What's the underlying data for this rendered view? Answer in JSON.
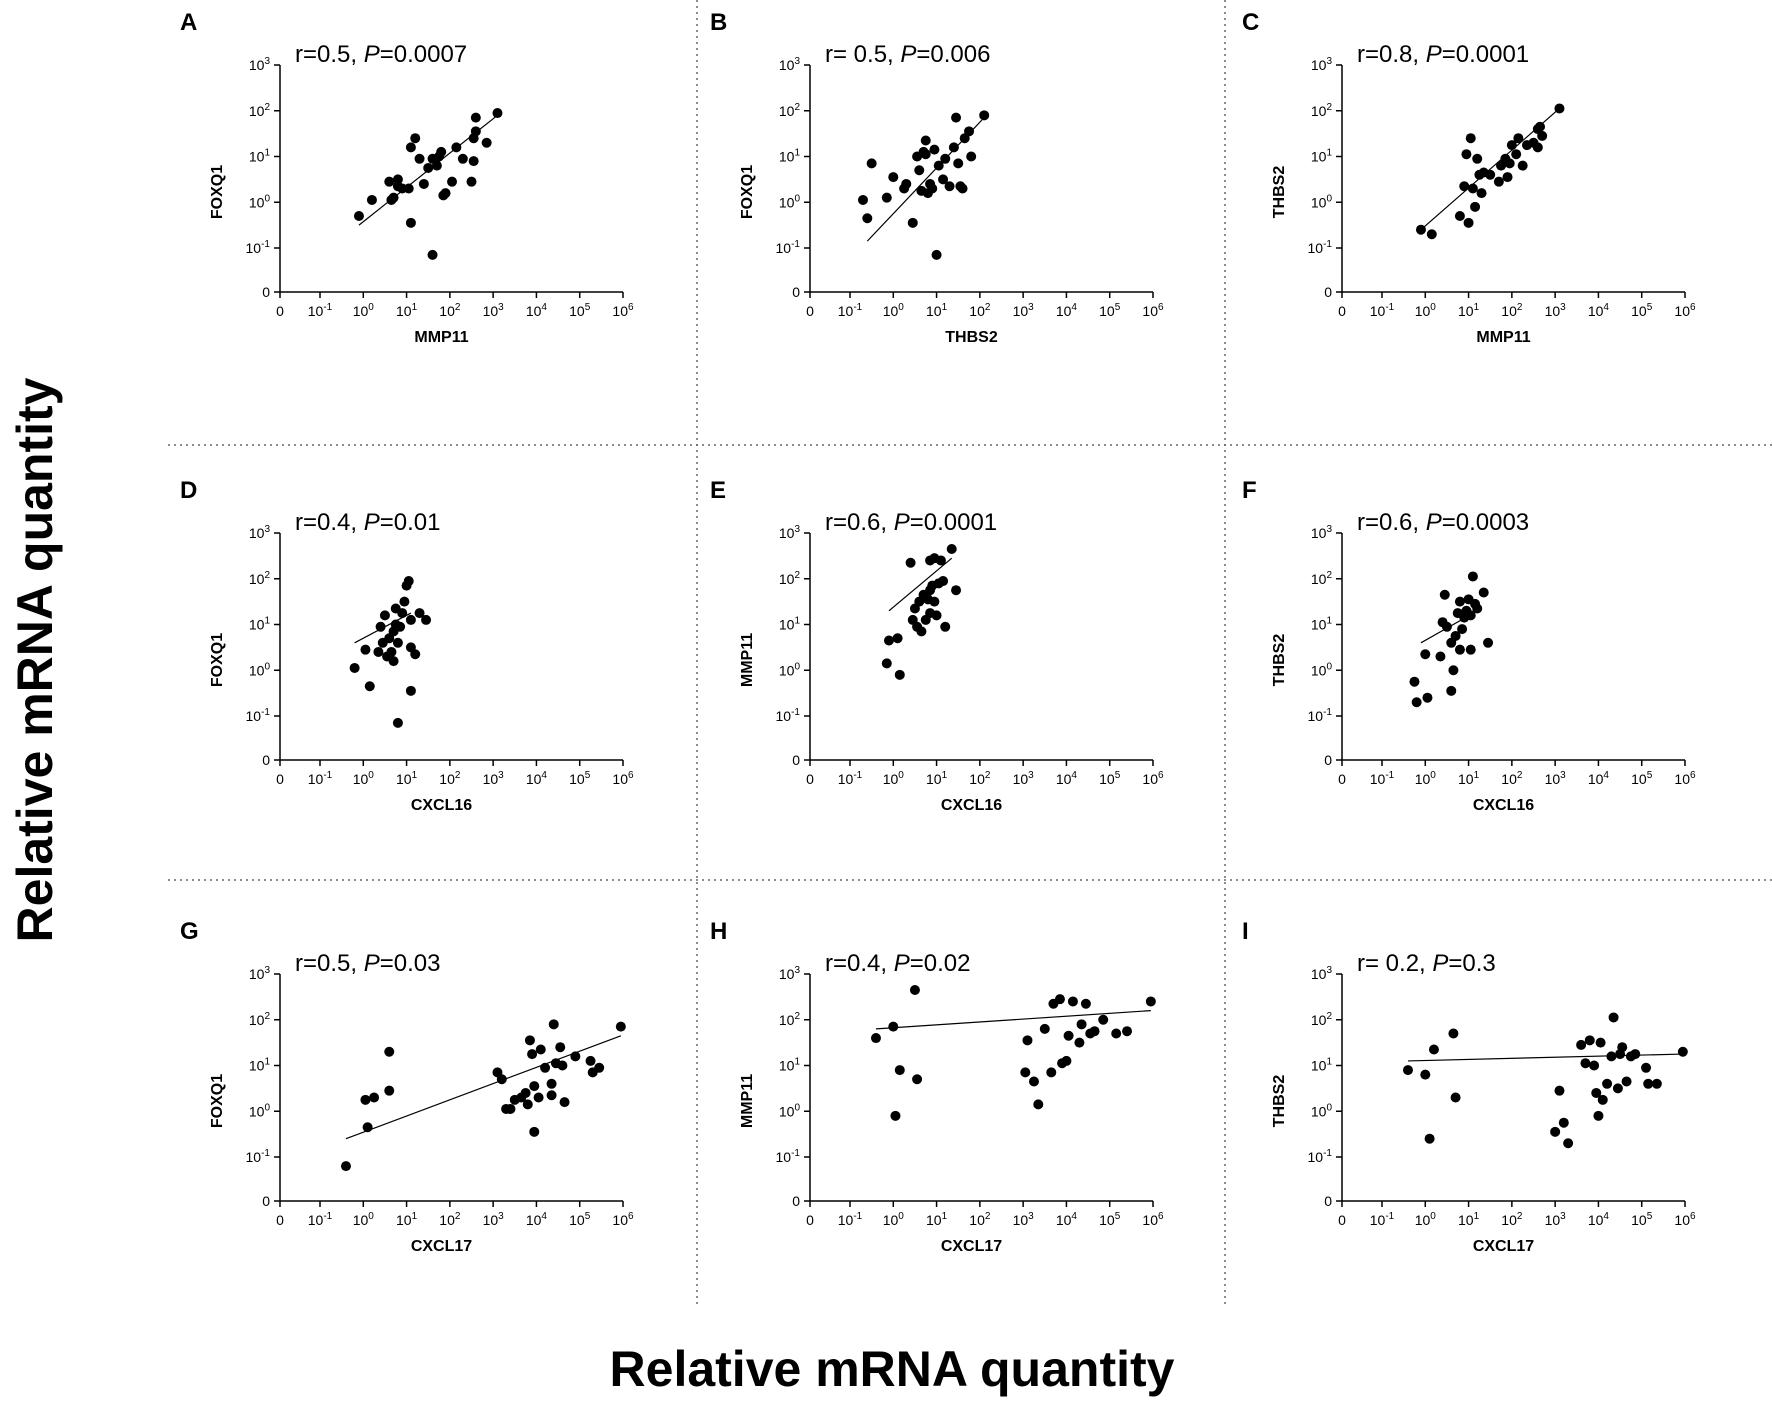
{
  "figure": {
    "y_axis_label": "Relative mRNA quantity",
    "x_axis_label": "Relative mRNA quantity"
  },
  "chart_data": [
    {
      "type": "scatter",
      "panel": "A",
      "r_text": "r=0.5, ",
      "p_label": "P",
      "p_text": "=0.0007",
      "xlabel": "MMP11",
      "ylabel": "FOXQ1",
      "xlim": [
        -2,
        6
      ],
      "ylim": [
        -2,
        3
      ],
      "x_ticks": [
        "0",
        "10-1",
        "100",
        "101",
        "102",
        "103",
        "104",
        "105",
        "106"
      ],
      "y_ticks": [
        "0",
        "10-1",
        "100",
        "101",
        "102",
        "103"
      ],
      "fit": [
        [
          -0.1,
          -0.5
        ],
        [
          3.1,
          1.9
        ]
      ],
      "points": [
        [
          -0.1,
          -0.3
        ],
        [
          0.2,
          0.05
        ],
        [
          0.6,
          0.45
        ],
        [
          0.65,
          0.05
        ],
        [
          0.7,
          0.1
        ],
        [
          0.8,
          0.35
        ],
        [
          0.8,
          0.5
        ],
        [
          0.9,
          0.3
        ],
        [
          1.05,
          0.3
        ],
        [
          1.1,
          1.2
        ],
        [
          1.1,
          -0.45
        ],
        [
          1.2,
          1.4
        ],
        [
          1.3,
          0.95
        ],
        [
          1.4,
          0.4
        ],
        [
          1.5,
          0.75
        ],
        [
          1.6,
          0.95
        ],
        [
          1.6,
          -1.15
        ],
        [
          1.7,
          0.8
        ],
        [
          1.75,
          1.0
        ],
        [
          1.8,
          1.1
        ],
        [
          1.85,
          0.15
        ],
        [
          1.9,
          0.2
        ],
        [
          2.05,
          0.45
        ],
        [
          2.15,
          1.2
        ],
        [
          2.3,
          0.95
        ],
        [
          2.5,
          0.45
        ],
        [
          2.55,
          0.9
        ],
        [
          2.55,
          1.4
        ],
        [
          2.6,
          1.55
        ],
        [
          2.6,
          1.85
        ],
        [
          2.85,
          1.3
        ],
        [
          3.1,
          1.95
        ]
      ]
    },
    {
      "type": "scatter",
      "panel": "B",
      "r_text": "r= 0.5, ",
      "p_label": "P",
      "p_text": "=0.006",
      "xlabel": "THBS2",
      "ylabel": "FOXQ1",
      "xlim": [
        -2,
        6
      ],
      "ylim": [
        -2,
        3
      ],
      "x_ticks": [
        "0",
        "10-1",
        "100",
        "101",
        "102",
        "103",
        "104",
        "105",
        "106"
      ],
      "y_ticks": [
        "0",
        "10-1",
        "100",
        "101",
        "102",
        "103"
      ],
      "fit": [
        [
          -0.6,
          -0.85
        ],
        [
          2.05,
          1.8
        ]
      ],
      "points": [
        [
          -0.7,
          0.05
        ],
        [
          -0.6,
          -0.35
        ],
        [
          -0.5,
          0.85
        ],
        [
          -0.15,
          0.1
        ],
        [
          0.0,
          0.55
        ],
        [
          0.25,
          0.3
        ],
        [
          0.3,
          0.4
        ],
        [
          0.45,
          -0.45
        ],
        [
          0.55,
          1.0
        ],
        [
          0.6,
          0.7
        ],
        [
          0.65,
          0.25
        ],
        [
          0.7,
          1.1
        ],
        [
          0.75,
          1.35
        ],
        [
          0.75,
          1.05
        ],
        [
          0.8,
          0.2
        ],
        [
          0.85,
          0.4
        ],
        [
          0.9,
          0.3
        ],
        [
          0.95,
          1.15
        ],
        [
          1.0,
          -1.15
        ],
        [
          1.05,
          0.8
        ],
        [
          1.15,
          0.5
        ],
        [
          1.2,
          0.95
        ],
        [
          1.3,
          0.35
        ],
        [
          1.4,
          1.2
        ],
        [
          1.45,
          1.85
        ],
        [
          1.5,
          0.85
        ],
        [
          1.55,
          0.35
        ],
        [
          1.6,
          0.3
        ],
        [
          1.65,
          1.4
        ],
        [
          1.75,
          1.55
        ],
        [
          1.8,
          1.0
        ],
        [
          2.1,
          1.9
        ]
      ]
    },
    {
      "type": "scatter",
      "panel": "C",
      "r_text": "r=0.8, ",
      "p_label": "P",
      "p_text": "=0.0001",
      "xlabel": "MMP11",
      "ylabel": "THBS2",
      "xlim": [
        -2,
        6
      ],
      "ylim": [
        -2,
        3
      ],
      "x_ticks": [
        "0",
        "10-1",
        "100",
        "101",
        "102",
        "103",
        "104",
        "105",
        "106"
      ],
      "y_ticks": [
        "0",
        "10-1",
        "100",
        "101",
        "102",
        "103"
      ],
      "fit": [
        [
          -0.1,
          -0.6
        ],
        [
          3.1,
          2.05
        ]
      ],
      "points": [
        [
          -0.1,
          -0.6
        ],
        [
          0.15,
          -0.7
        ],
        [
          0.8,
          -0.3
        ],
        [
          0.9,
          0.35
        ],
        [
          0.95,
          1.05
        ],
        [
          1.0,
          -0.45
        ],
        [
          1.05,
          1.4
        ],
        [
          1.1,
          0.3
        ],
        [
          1.15,
          -0.1
        ],
        [
          1.2,
          0.95
        ],
        [
          1.25,
          0.6
        ],
        [
          1.3,
          0.2
        ],
        [
          1.35,
          0.65
        ],
        [
          1.5,
          0.6
        ],
        [
          1.7,
          0.45
        ],
        [
          1.75,
          0.8
        ],
        [
          1.85,
          0.95
        ],
        [
          1.9,
          0.55
        ],
        [
          1.95,
          0.85
        ],
        [
          2.0,
          1.25
        ],
        [
          2.1,
          1.05
        ],
        [
          2.15,
          1.4
        ],
        [
          2.25,
          0.8
        ],
        [
          2.35,
          1.25
        ],
        [
          2.5,
          1.3
        ],
        [
          2.6,
          1.2
        ],
        [
          2.6,
          1.6
        ],
        [
          2.65,
          1.65
        ],
        [
          2.7,
          1.45
        ],
        [
          3.1,
          2.05
        ]
      ]
    },
    {
      "type": "scatter",
      "panel": "D",
      "r_text": "r=0.4, ",
      "p_label": "P",
      "p_text": "=0.01",
      "xlabel": "CXCL16",
      "ylabel": "FOXQ1",
      "xlim": [
        -2,
        6
      ],
      "ylim": [
        -2,
        3
      ],
      "x_ticks": [
        "0",
        "10-1",
        "100",
        "101",
        "102",
        "103",
        "104",
        "105",
        "106"
      ],
      "y_ticks": [
        "0",
        "10-1",
        "100",
        "101",
        "102",
        "103"
      ],
      "fit": [
        [
          -0.2,
          0.6
        ],
        [
          1.1,
          1.25
        ]
      ],
      "points": [
        [
          -0.2,
          0.05
        ],
        [
          0.05,
          0.45
        ],
        [
          0.15,
          -0.35
        ],
        [
          0.35,
          0.4
        ],
        [
          0.4,
          0.95
        ],
        [
          0.45,
          0.6
        ],
        [
          0.5,
          1.2
        ],
        [
          0.55,
          0.3
        ],
        [
          0.6,
          0.7
        ],
        [
          0.65,
          0.4
        ],
        [
          0.7,
          0.2
        ],
        [
          0.7,
          0.85
        ],
        [
          0.75,
          1.0
        ],
        [
          0.75,
          1.35
        ],
        [
          0.8,
          0.6
        ],
        [
          0.8,
          -1.15
        ],
        [
          0.85,
          0.95
        ],
        [
          0.9,
          1.25
        ],
        [
          0.95,
          1.5
        ],
        [
          1.0,
          1.85
        ],
        [
          1.05,
          1.95
        ],
        [
          1.1,
          1.1
        ],
        [
          1.1,
          0.5
        ],
        [
          1.1,
          -0.45
        ],
        [
          1.2,
          0.35
        ],
        [
          1.3,
          1.25
        ],
        [
          1.45,
          1.1
        ]
      ]
    },
    {
      "type": "scatter",
      "panel": "E",
      "r_text": "r=0.6, ",
      "p_label": "P",
      "p_text": "=0.0001",
      "xlabel": "CXCL16",
      "ylabel": "MMP11",
      "xlim": [
        -2,
        6
      ],
      "ylim": [
        -2,
        3
      ],
      "x_ticks": [
        "0",
        "10-1",
        "100",
        "101",
        "102",
        "103",
        "104",
        "105",
        "106"
      ],
      "y_ticks": [
        "0",
        "10-1",
        "100",
        "101",
        "102",
        "103"
      ],
      "fit": [
        [
          -0.1,
          1.3
        ],
        [
          1.35,
          2.45
        ]
      ],
      "points": [
        [
          -0.15,
          0.15
        ],
        [
          -0.1,
          0.65
        ],
        [
          0.1,
          0.7
        ],
        [
          0.15,
          -0.1
        ],
        [
          0.4,
          2.35
        ],
        [
          0.45,
          1.1
        ],
        [
          0.5,
          1.35
        ],
        [
          0.55,
          0.95
        ],
        [
          0.6,
          1.5
        ],
        [
          0.65,
          0.85
        ],
        [
          0.7,
          1.65
        ],
        [
          0.75,
          1.1
        ],
        [
          0.8,
          1.55
        ],
        [
          0.85,
          2.4
        ],
        [
          0.85,
          1.25
        ],
        [
          0.85,
          1.75
        ],
        [
          0.9,
          1.85
        ],
        [
          0.95,
          2.45
        ],
        [
          0.95,
          1.5
        ],
        [
          1.0,
          1.2
        ],
        [
          1.05,
          1.9
        ],
        [
          1.1,
          2.4
        ],
        [
          1.15,
          1.95
        ],
        [
          1.2,
          0.95
        ],
        [
          1.35,
          2.65
        ],
        [
          1.45,
          1.75
        ]
      ]
    },
    {
      "type": "scatter",
      "panel": "F",
      "r_text": "r=0.6, ",
      "p_label": "P",
      "p_text": "=0.0003",
      "xlabel": "CXCL16",
      "ylabel": "THBS2",
      "xlim": [
        -2,
        6
      ],
      "ylim": [
        -2,
        3
      ],
      "x_ticks": [
        "0",
        "10-1",
        "100",
        "101",
        "102",
        "103",
        "104",
        "105",
        "106"
      ],
      "y_ticks": [
        "0",
        "10-1",
        "100",
        "101",
        "102",
        "103"
      ],
      "fit": [
        [
          -0.1,
          0.6
        ],
        [
          1.3,
          1.35
        ]
      ],
      "points": [
        [
          -0.25,
          -0.25
        ],
        [
          -0.2,
          -0.7
        ],
        [
          0.05,
          -0.6
        ],
        [
          0.0,
          0.35
        ],
        [
          0.35,
          0.3
        ],
        [
          0.4,
          1.05
        ],
        [
          0.45,
          1.65
        ],
        [
          0.5,
          0.95
        ],
        [
          0.6,
          0.6
        ],
        [
          0.6,
          -0.45
        ],
        [
          0.65,
          0.0
        ],
        [
          0.7,
          0.75
        ],
        [
          0.75,
          1.25
        ],
        [
          0.8,
          0.45
        ],
        [
          0.8,
          1.5
        ],
        [
          0.85,
          0.9
        ],
        [
          0.9,
          1.15
        ],
        [
          0.95,
          1.3
        ],
        [
          1.0,
          1.55
        ],
        [
          1.05,
          0.45
        ],
        [
          1.05,
          1.2
        ],
        [
          1.1,
          2.05
        ],
        [
          1.15,
          1.45
        ],
        [
          1.2,
          1.35
        ],
        [
          1.35,
          1.7
        ],
        [
          1.45,
          0.6
        ]
      ]
    },
    {
      "type": "scatter",
      "panel": "G",
      "r_text": "r=0.5, ",
      "p_label": "P",
      "p_text": "=0.03",
      "xlabel": "CXCL17",
      "ylabel": "FOXQ1",
      "xlim": [
        -2,
        6
      ],
      "ylim": [
        -2,
        3
      ],
      "x_ticks": [
        "0",
        "10-1",
        "100",
        "101",
        "102",
        "103",
        "104",
        "105",
        "106"
      ],
      "y_ticks": [
        "0",
        "10-1",
        "100",
        "101",
        "102",
        "103"
      ],
      "fit": [
        [
          -0.4,
          -0.6
        ],
        [
          5.95,
          1.65
        ]
      ],
      "points": [
        [
          -0.4,
          -1.2
        ],
        [
          0.05,
          0.25
        ],
        [
          0.1,
          -0.35
        ],
        [
          0.25,
          0.3
        ],
        [
          0.6,
          0.45
        ],
        [
          0.6,
          1.3
        ],
        [
          3.1,
          0.85
        ],
        [
          3.2,
          0.7
        ],
        [
          3.3,
          0.05
        ],
        [
          3.4,
          0.05
        ],
        [
          3.5,
          0.25
        ],
        [
          3.65,
          0.3
        ],
        [
          3.75,
          0.4
        ],
        [
          3.8,
          0.15
        ],
        [
          3.85,
          1.55
        ],
        [
          3.9,
          1.25
        ],
        [
          3.95,
          0.55
        ],
        [
          3.95,
          -0.45
        ],
        [
          4.05,
          0.3
        ],
        [
          4.1,
          1.35
        ],
        [
          4.2,
          0.95
        ],
        [
          4.35,
          0.6
        ],
        [
          4.35,
          0.35
        ],
        [
          4.4,
          1.9
        ],
        [
          4.45,
          1.05
        ],
        [
          4.55,
          1.4
        ],
        [
          4.6,
          1.0
        ],
        [
          4.65,
          0.2
        ],
        [
          4.9,
          1.2
        ],
        [
          5.25,
          1.1
        ],
        [
          5.3,
          0.85
        ],
        [
          5.45,
          0.95
        ],
        [
          5.95,
          1.85
        ]
      ]
    },
    {
      "type": "scatter",
      "panel": "H",
      "r_text": "r=0.4, ",
      "p_label": "P",
      "p_text": "=0.02",
      "xlabel": "CXCL17",
      "ylabel": "MMP11",
      "xlim": [
        -2,
        6
      ],
      "ylim": [
        -2,
        3
      ],
      "x_ticks": [
        "0",
        "10-1",
        "100",
        "101",
        "102",
        "103",
        "104",
        "105",
        "106"
      ],
      "y_ticks": [
        "0",
        "10-1",
        "100",
        "101",
        "102",
        "103"
      ],
      "fit": [
        [
          -0.4,
          1.8
        ],
        [
          5.95,
          2.2
        ]
      ],
      "points": [
        [
          -0.4,
          1.6
        ],
        [
          0.0,
          1.85
        ],
        [
          0.05,
          -0.1
        ],
        [
          0.15,
          0.9
        ],
        [
          0.5,
          2.65
        ],
        [
          0.55,
          0.7
        ],
        [
          3.05,
          0.85
        ],
        [
          3.1,
          1.55
        ],
        [
          3.25,
          0.65
        ],
        [
          3.35,
          0.15
        ],
        [
          3.5,
          1.8
        ],
        [
          3.65,
          0.85
        ],
        [
          3.7,
          2.35
        ],
        [
          3.85,
          2.45
        ],
        [
          3.9,
          1.05
        ],
        [
          4.0,
          1.1
        ],
        [
          4.05,
          1.65
        ],
        [
          4.15,
          2.4
        ],
        [
          4.3,
          1.5
        ],
        [
          4.35,
          1.9
        ],
        [
          4.45,
          2.35
        ],
        [
          4.55,
          1.7
        ],
        [
          4.65,
          1.75
        ],
        [
          4.85,
          2.0
        ],
        [
          5.15,
          1.7
        ],
        [
          5.4,
          1.75
        ],
        [
          5.95,
          2.4
        ]
      ]
    },
    {
      "type": "scatter",
      "panel": "I",
      "r_text": "r= 0.2, ",
      "p_label": "P",
      "p_text": "=0.3",
      "xlabel": "CXCL17",
      "ylabel": "THBS2",
      "xlim": [
        -2,
        6
      ],
      "ylim": [
        -2,
        3
      ],
      "x_ticks": [
        "0",
        "10-1",
        "100",
        "101",
        "102",
        "103",
        "104",
        "105",
        "106"
      ],
      "y_ticks": [
        "0",
        "10-1",
        "100",
        "101",
        "102",
        "103"
      ],
      "fit": [
        [
          -0.4,
          1.1
        ],
        [
          5.95,
          1.25
        ]
      ],
      "points": [
        [
          -0.4,
          0.9
        ],
        [
          0.0,
          0.8
        ],
        [
          0.1,
          -0.6
        ],
        [
          0.2,
          1.35
        ],
        [
          0.65,
          1.7
        ],
        [
          0.7,
          0.3
        ],
        [
          3.0,
          -0.45
        ],
        [
          3.1,
          0.45
        ],
        [
          3.2,
          -0.25
        ],
        [
          3.3,
          -0.7
        ],
        [
          3.6,
          1.45
        ],
        [
          3.7,
          1.05
        ],
        [
          3.8,
          1.55
        ],
        [
          3.9,
          1.0
        ],
        [
          3.95,
          0.4
        ],
        [
          4.0,
          -0.1
        ],
        [
          4.05,
          1.5
        ],
        [
          4.1,
          0.25
        ],
        [
          4.2,
          0.6
        ],
        [
          4.3,
          1.2
        ],
        [
          4.35,
          2.05
        ],
        [
          4.45,
          0.5
        ],
        [
          4.5,
          1.25
        ],
        [
          4.55,
          1.4
        ],
        [
          4.65,
          0.65
        ],
        [
          4.75,
          1.2
        ],
        [
          4.85,
          1.25
        ],
        [
          5.1,
          0.95
        ],
        [
          5.15,
          0.6
        ],
        [
          5.35,
          0.6
        ],
        [
          5.95,
          1.3
        ]
      ]
    }
  ]
}
